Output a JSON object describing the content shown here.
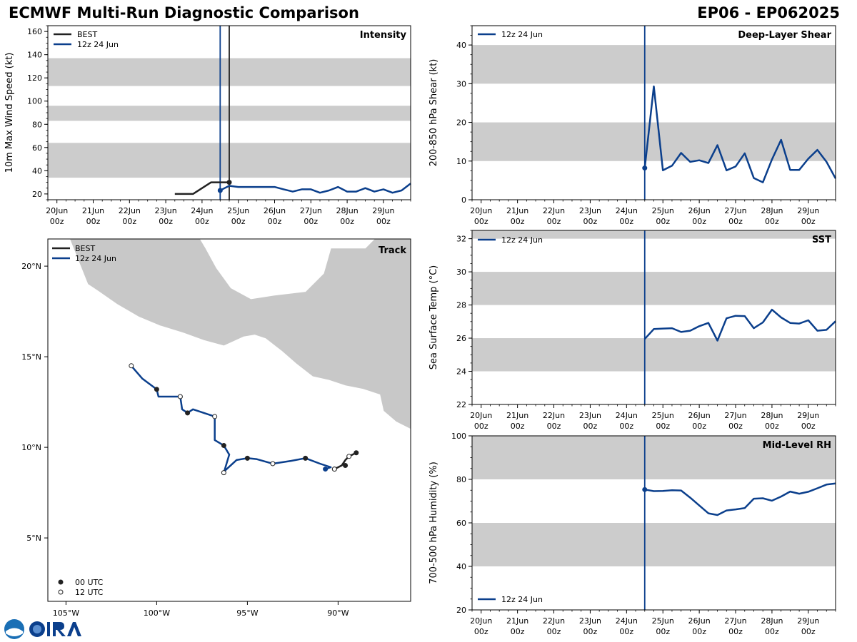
{
  "header": {
    "title": "ECMWF Multi-Run Diagnostic Comparison",
    "storm": "EP06 - EP062025"
  },
  "colors": {
    "best": "#222222",
    "run": "#0b3f8c",
    "band": "#cccccc",
    "land": "#c8c8c8"
  },
  "time_axis": {
    "labels": [
      [
        "20Jun",
        "00z"
      ],
      [
        "21Jun",
        "00z"
      ],
      [
        "22Jun",
        "00z"
      ],
      [
        "23Jun",
        "00z"
      ],
      [
        "24Jun",
        "00z"
      ],
      [
        "25Jun",
        "00z"
      ],
      [
        "26Jun",
        "00z"
      ],
      [
        "27Jun",
        "00z"
      ],
      [
        "28Jun",
        "00z"
      ],
      [
        "29Jun",
        "00z"
      ]
    ]
  },
  "chart_data": [
    {
      "id": "intensity",
      "type": "line",
      "title": "Intensity",
      "ylabel": "10m Max Wind Speed (kt)",
      "ylim": [
        15,
        165
      ],
      "yticks": [
        20,
        40,
        60,
        80,
        100,
        120,
        140,
        160
      ],
      "xlim": [
        -0.25,
        9.75
      ],
      "bands": [
        [
          34,
          64
        ],
        [
          83,
          96
        ],
        [
          113,
          137
        ]
      ],
      "vlines": [
        {
          "x": 4.5,
          "series": "run"
        },
        {
          "x": 4.75,
          "series": "best"
        }
      ],
      "legend": [
        "BEST",
        "12z 24 Jun"
      ],
      "series": [
        {
          "name": "BEST",
          "key": "best",
          "x": [
            3.25,
            3.75,
            4.25,
            4.5,
            4.75
          ],
          "y": [
            20,
            20,
            30,
            30,
            30
          ],
          "marker_last": true
        },
        {
          "name": "12z 24 Jun",
          "key": "run",
          "x": [
            4.5,
            4.625,
            4.75,
            5.0,
            5.25,
            5.5,
            5.75,
            6.0,
            6.25,
            6.5,
            6.75,
            7.0,
            7.25,
            7.5,
            7.75,
            8.0,
            8.25,
            8.5,
            8.75,
            9.0,
            9.25,
            9.5,
            9.75
          ],
          "y": [
            23,
            25,
            27,
            26,
            26,
            26,
            26,
            26,
            24,
            22,
            24,
            24,
            21,
            23,
            26,
            22,
            22,
            25,
            22,
            24,
            21,
            23,
            29
          ],
          "marker_first": true
        }
      ]
    },
    {
      "id": "shear",
      "type": "line",
      "title": "Deep-Layer Shear",
      "ylabel": "200-850 hPa Shear (kt)",
      "ylim": [
        0,
        45
      ],
      "yticks": [
        0,
        10,
        20,
        30,
        40
      ],
      "xlim": [
        -0.25,
        9.75
      ],
      "bands": [
        [
          10,
          20
        ],
        [
          30,
          40
        ]
      ],
      "vlines": [
        {
          "x": 4.5,
          "series": "run"
        }
      ],
      "legend": [
        "12z 24 Jun"
      ],
      "series": [
        {
          "name": "12z 24 Jun",
          "key": "run",
          "x": [
            4.5,
            4.75,
            5.0,
            5.25,
            5.5,
            5.75,
            6.0,
            6.25,
            6.5,
            6.75,
            7.0,
            7.25,
            7.5,
            7.75,
            8.0,
            8.25,
            8.5,
            8.75,
            9.0,
            9.25,
            9.5,
            9.75
          ],
          "y": [
            8.2,
            29.3,
            7.6,
            8.8,
            12.1,
            9.8,
            10.2,
            9.5,
            14.1,
            7.6,
            8.6,
            12.0,
            5.6,
            4.5,
            10.4,
            15.5,
            7.7,
            7.7,
            10.6,
            12.9,
            9.8,
            5.5
          ],
          "marker_first": true
        }
      ]
    },
    {
      "id": "sst",
      "type": "line",
      "title": "SST",
      "ylabel": "Sea Surface Temp (°C)",
      "ylim": [
        22,
        32.5
      ],
      "yticks": [
        22,
        24,
        26,
        28,
        30,
        32
      ],
      "xlim": [
        -0.25,
        9.75
      ],
      "bands": [
        [
          24,
          26
        ],
        [
          28,
          30
        ],
        [
          32,
          34
        ]
      ],
      "vlines": [
        {
          "x": 4.5,
          "series": "run"
        }
      ],
      "legend": [
        "12z 24 Jun"
      ],
      "series": [
        {
          "name": "12z 24 Jun",
          "key": "run",
          "x": [
            4.5,
            4.75,
            5.0,
            5.25,
            5.5,
            5.75,
            6.0,
            6.25,
            6.5,
            6.75,
            7.0,
            7.25,
            7.5,
            7.75,
            8.0,
            8.25,
            8.5,
            8.75,
            9.0,
            9.25,
            9.5,
            9.75
          ],
          "y": [
            25.95,
            26.55,
            26.58,
            26.6,
            26.37,
            26.45,
            26.72,
            26.92,
            25.85,
            27.2,
            27.35,
            27.33,
            26.6,
            26.95,
            27.72,
            27.25,
            26.92,
            26.88,
            27.08,
            26.45,
            26.5,
            27.02
          ]
        }
      ]
    },
    {
      "id": "rh",
      "type": "line",
      "title": "Mid-Level RH",
      "ylabel": "700-500 hPa Humidity (%)",
      "ylim": [
        20,
        100
      ],
      "yticks": [
        20,
        40,
        60,
        80,
        100
      ],
      "xlim": [
        -0.25,
        9.75
      ],
      "bands": [
        [
          40,
          60
        ],
        [
          80,
          100
        ]
      ],
      "vlines": [
        {
          "x": 4.5,
          "series": "run"
        }
      ],
      "legend": [
        "12z 24 Jun"
      ],
      "series": [
        {
          "name": "12z 24 Jun",
          "key": "run",
          "x": [
            4.5,
            4.75,
            5.0,
            5.25,
            5.5,
            5.75,
            6.0,
            6.25,
            6.5,
            6.75,
            7.0,
            7.25,
            7.5,
            7.75,
            8.0,
            8.25,
            8.5,
            8.75,
            9.0,
            9.25,
            9.5,
            9.75
          ],
          "y": [
            75.3,
            74.6,
            74.7,
            75.0,
            74.9,
            71.6,
            68.0,
            64.4,
            63.6,
            65.7,
            66.2,
            66.8,
            71.1,
            71.3,
            70.2,
            72.1,
            74.4,
            73.4,
            74.3,
            75.9,
            77.6,
            78.1
          ],
          "marker_first": true
        }
      ]
    },
    {
      "id": "track",
      "type": "scatter",
      "title": "Track",
      "xlim": [
        -106,
        -86
      ],
      "ylim": [
        1.5,
        21.5
      ],
      "xticks": [
        {
          "v": -105,
          "label": "105°W"
        },
        {
          "v": -100,
          "label": "100°W"
        },
        {
          "v": -95,
          "label": "95°W"
        },
        {
          "v": -90,
          "label": "90°W"
        }
      ],
      "yticks": [
        {
          "v": 5,
          "label": "5°N"
        },
        {
          "v": 10,
          "label": "10°N"
        },
        {
          "v": 15,
          "label": "15°N"
        },
        {
          "v": 20,
          "label": "20°N"
        }
      ],
      "legend": [
        "BEST",
        "12z 24 Jun"
      ],
      "marker_legend": [
        "00 UTC",
        "12 UTC"
      ],
      "best_track": [
        [
          -89.0,
          9.7
        ],
        [
          -89.4,
          9.5
        ],
        [
          -89.6,
          9.3
        ],
        [
          -89.8,
          9.0
        ],
        [
          -90.2,
          8.8
        ]
      ],
      "best_00z": [
        [
          -89.0,
          9.7
        ],
        [
          -89.6,
          9.0
        ]
      ],
      "best_12z": [
        [
          -89.4,
          9.5
        ],
        [
          -90.2,
          8.8
        ]
      ],
      "run_track": [
        [
          -90.7,
          8.8
        ],
        [
          -90.4,
          8.9
        ],
        [
          -91.0,
          9.1
        ],
        [
          -91.8,
          9.4
        ],
        [
          -92.6,
          9.25
        ],
        [
          -93.6,
          9.1
        ],
        [
          -94.5,
          9.35
        ],
        [
          -95.0,
          9.4
        ],
        [
          -95.6,
          9.3
        ],
        [
          -96.2,
          8.75
        ],
        [
          -96.3,
          8.6
        ],
        [
          -96.0,
          9.6
        ],
        [
          -96.3,
          10.1
        ],
        [
          -96.8,
          10.4
        ],
        [
          -96.8,
          11.7
        ],
        [
          -98.0,
          12.1
        ],
        [
          -98.3,
          11.9
        ],
        [
          -98.6,
          12.1
        ],
        [
          -98.7,
          12.8
        ],
        [
          -99.9,
          12.8
        ],
        [
          -100.0,
          13.2
        ],
        [
          -100.8,
          13.8
        ],
        [
          -101.4,
          14.5
        ]
      ],
      "run_00z": [
        [
          -91.8,
          9.4
        ],
        [
          -95.0,
          9.4
        ],
        [
          -96.3,
          10.1
        ],
        [
          -98.3,
          11.9
        ],
        [
          -100.0,
          13.2
        ]
      ],
      "run_12z": [
        [
          -90.2,
          8.8
        ],
        [
          -93.6,
          9.1
        ],
        [
          -96.3,
          8.6
        ],
        [
          -96.8,
          11.7
        ],
        [
          -98.7,
          12.8
        ],
        [
          -101.4,
          14.5
        ]
      ],
      "start_point": [
        -90.7,
        8.8
      ],
      "land": [
        [
          [
            -106,
            21.5
          ],
          [
            -104.8,
            21.5
          ],
          [
            -103.8,
            19.0
          ],
          [
            -103.2,
            18.6
          ],
          [
            -102.2,
            17.9
          ],
          [
            -101.0,
            17.2
          ],
          [
            -99.8,
            16.7
          ],
          [
            -98.5,
            16.3
          ],
          [
            -97.4,
            15.9
          ],
          [
            -96.3,
            15.6
          ],
          [
            -95.2,
            16.1
          ],
          [
            -94.6,
            16.2
          ],
          [
            -94.0,
            16.0
          ],
          [
            -93.1,
            15.3
          ],
          [
            -92.3,
            14.6
          ],
          [
            -91.4,
            13.9
          ],
          [
            -90.5,
            13.7
          ],
          [
            -89.6,
            13.4
          ],
          [
            -88.6,
            13.2
          ],
          [
            -87.7,
            12.9
          ],
          [
            -87.5,
            12.0
          ],
          [
            -86.8,
            11.4
          ],
          [
            -86.0,
            11.0
          ],
          [
            -86,
            21.5
          ],
          [
            -88.0,
            21.5
          ],
          [
            -88.5,
            21.0
          ],
          [
            -90.4,
            21.0
          ],
          [
            -90.8,
            19.6
          ],
          [
            -91.8,
            18.6
          ],
          [
            -93.5,
            18.4
          ],
          [
            -94.8,
            18.2
          ],
          [
            -95.9,
            18.8
          ],
          [
            -96.7,
            19.9
          ],
          [
            -97.3,
            21.0
          ],
          [
            -97.6,
            21.5
          ]
        ]
      ]
    }
  ]
}
